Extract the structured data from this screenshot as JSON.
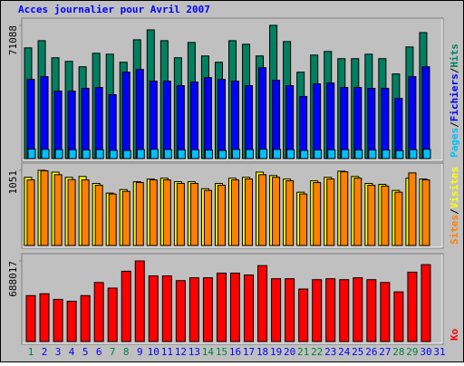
{
  "title": "Acces journalier pour Avril 2007",
  "legend_separator": "/",
  "chart_data": [
    {
      "type": "bar",
      "ylim": [
        0,
        71088
      ],
      "yticks": [
        71088
      ],
      "series": [
        {
          "name": "Hits",
          "color": "#008060",
          "values": [
            59077,
            62919,
            53794,
            51872,
            48991,
            56195,
            55715,
            51392,
            63400,
            68683,
            62919,
            53794,
            61959,
            54754,
            51392,
            62919,
            60998,
            54754,
            71088,
            62439,
            46109,
            55235,
            57156,
            53313,
            53313,
            55715,
            53313,
            45148,
            59557,
            67242,
            null
          ]
        },
        {
          "name": "Fichiers",
          "color": "#0000ff",
          "values": [
            42266,
            43707,
            36023,
            36023,
            37463,
            37944,
            34101,
            46109,
            47550,
            41306,
            41306,
            38904,
            40826,
            43227,
            42266,
            41306,
            38904,
            48510,
            41786,
            38904,
            33141,
            39865,
            40345,
            37944,
            37944,
            37463,
            37463,
            32180,
            43707,
            48991,
            null
          ]
        },
        {
          "name": "Pages",
          "color": "#00c0ff",
          "values": [
            5040,
            4900,
            4800,
            4700,
            4620,
            4750,
            4400,
            4300,
            4810,
            4950,
            4820,
            4660,
            4700,
            4520,
            4310,
            4870,
            4780,
            4990,
            4860,
            4740,
            4350,
            4600,
            4690,
            4730,
            4580,
            4620,
            4560,
            4200,
            4750,
            4960,
            null
          ]
        }
      ]
    },
    {
      "type": "bar",
      "ylim": [
        0,
        1051
      ],
      "yticks": [
        1051
      ],
      "series": [
        {
          "name": "Visites",
          "color": "#ffff00",
          "values": [
            953,
            1051,
            1026,
            953,
            965,
            868,
            733,
            782,
            892,
            929,
            941,
            892,
            892,
            794,
            868,
            941,
            953,
            1026,
            978,
            929,
            745,
            904,
            953,
            1039,
            965,
            868,
            855,
            770,
            941,
            929,
            null
          ]
        },
        {
          "name": "Sites",
          "color": "#ff8000",
          "values": [
            917,
            1045,
            990,
            921,
            917,
            843,
            720,
            757,
            880,
            917,
            917,
            868,
            868,
            770,
            843,
            917,
            929,
            990,
            954,
            905,
            721,
            880,
            929,
            1030,
            941,
            843,
            831,
            745,
            1015,
            917,
            null
          ]
        }
      ]
    },
    {
      "type": "bar",
      "ylim": [
        0,
        688017
      ],
      "yticks": [
        688017
      ],
      "categories": [
        "1",
        "2",
        "3",
        "4",
        "5",
        "6",
        "7",
        "8",
        "9",
        "10",
        "11",
        "12",
        "13",
        "14",
        "15",
        "16",
        "17",
        "18",
        "19",
        "20",
        "21",
        "22",
        "23",
        "24",
        "25",
        "26",
        "27",
        "28",
        "29",
        "30",
        "31"
      ],
      "category_colors": [
        "#008040",
        "#0000ff",
        "#0000ff",
        "#0000ff",
        "#0000ff",
        "#0000ff",
        "#008040",
        "#008040",
        "#0000ff",
        "#0000ff",
        "#0000ff",
        "#0000ff",
        "#0000ff",
        "#008040",
        "#008040",
        "#0000ff",
        "#0000ff",
        "#0000ff",
        "#0000ff",
        "#0000ff",
        "#008040",
        "#008040",
        "#0000ff",
        "#0000ff",
        "#0000ff",
        "#0000ff",
        "#0000ff",
        "#008040",
        "#008040",
        "#0000ff",
        "#0000ff"
      ],
      "series": [
        {
          "name": "Ko",
          "color": "#ff0000",
          "values": [
            392008,
            408009,
            360008,
            344007,
            392008,
            504011,
            456010,
            600013,
            688017,
            560012,
            560012,
            520011,
            544012,
            544012,
            584013,
            584013,
            568012,
            648014,
            536012,
            536012,
            448010,
            528011,
            536012,
            528011,
            544012,
            528011,
            504011,
            424009,
            592013,
            656014,
            null
          ]
        }
      ]
    }
  ]
}
